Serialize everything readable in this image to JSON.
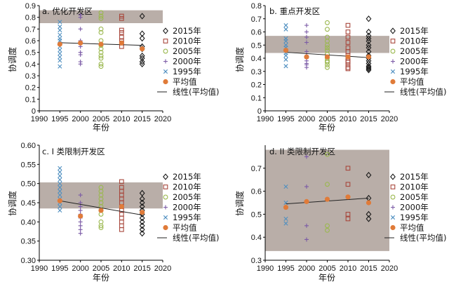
{
  "series_style": {
    "2015": {
      "marker": "diamond",
      "color": "#1a1a1a"
    },
    "2010": {
      "marker": "square",
      "color": "#a8473c"
    },
    "2005": {
      "marker": "circle",
      "color": "#9bb84f"
    },
    "2000": {
      "marker": "plus",
      "color": "#7b5aa6"
    },
    "1995": {
      "marker": "x",
      "color": "#4f8fc0"
    },
    "mean": {
      "marker": "dot",
      "color": "#e07b39"
    },
    "trend": {
      "marker": "line",
      "color": "#222222"
    }
  },
  "band_color": "#b3a7a1",
  "chart_data": [
    {
      "type": "scatter",
      "title": "a. 优化开发区",
      "xlabel": "年份",
      "ylabel": "协调度",
      "xlim": [
        1990,
        2020
      ],
      "ylim": [
        0,
        0.9
      ],
      "xticks": [
        "1990",
        "1995",
        "2000",
        "2005",
        "2010",
        "2015",
        "2020"
      ],
      "yticks": [
        "0",
        "0.1",
        "0.2",
        "0.3",
        "0.4",
        "0.5",
        "0.6",
        "0.7",
        "0.8",
        "0.9"
      ],
      "band": [
        0.75,
        0.86
      ],
      "legend": [
        "2015年",
        "2010年",
        "2005年",
        "2000年",
        "1995年",
        "平均值",
        "线性(平均值)"
      ],
      "series": [
        {
          "name": "2015年",
          "x": 2015,
          "values": [
            0.81,
            0.66,
            0.62,
            0.55,
            0.53,
            0.47,
            0.45,
            0.42,
            0.4
          ]
        },
        {
          "name": "2010年",
          "x": 2010,
          "values": [
            0.81,
            0.79,
            0.69,
            0.67,
            0.63,
            0.6,
            0.58,
            0.55
          ]
        },
        {
          "name": "2005年",
          "x": 2005,
          "values": [
            0.84,
            0.81,
            0.79,
            0.7,
            0.67,
            0.6,
            0.56,
            0.53,
            0.5,
            0.47,
            0.45,
            0.4,
            0.38
          ]
        },
        {
          "name": "2000年",
          "x": 2000,
          "values": [
            0.82,
            0.8,
            0.7,
            0.6,
            0.55,
            0.5,
            0.48,
            0.42,
            0.4
          ]
        },
        {
          "name": "1995年",
          "x": 1995,
          "values": [
            0.76,
            0.72,
            0.69,
            0.65,
            0.62,
            0.6,
            0.55,
            0.52,
            0.49,
            0.46,
            0.43,
            0.38
          ]
        },
        {
          "name": "平均值",
          "x": [
            1995,
            2000,
            2005,
            2010,
            2015
          ],
          "values": [
            0.57,
            0.58,
            0.57,
            0.58,
            0.53
          ]
        }
      ],
      "trend": {
        "name": "线性(平均值)",
        "x": [
          1995,
          2015
        ],
        "y": [
          0.583,
          0.56
        ]
      }
    },
    {
      "type": "scatter",
      "title": "b. 重点开发区",
      "xlabel": "年份",
      "ylabel": "协调度",
      "xlim": [
        1990,
        2020
      ],
      "ylim": [
        0,
        0.8
      ],
      "xticks": [
        "1990",
        "1995",
        "2000",
        "2005",
        "2010",
        "2015",
        "2020"
      ],
      "yticks": [
        "0",
        "0.1",
        "0.2",
        "0.3",
        "0.4",
        "0.5",
        "0.6",
        "0.7",
        "0.8"
      ],
      "band": [
        0.44,
        0.57
      ],
      "legend": [
        "2015年",
        "2010年",
        "2005年",
        "2000年",
        "1995年",
        "平均值",
        "线性(平均值)"
      ],
      "series": [
        {
          "name": "2015年",
          "x": 2015,
          "values": [
            0.7,
            0.6,
            0.57,
            0.55,
            0.53,
            0.5,
            0.48,
            0.45,
            0.42,
            0.4,
            0.38,
            0.36,
            0.34,
            0.33,
            0.32,
            0.31
          ]
        },
        {
          "name": "2010年",
          "x": 2010,
          "values": [
            0.65,
            0.6,
            0.56,
            0.52,
            0.48,
            0.45,
            0.42,
            0.4,
            0.38,
            0.37,
            0.35,
            0.33,
            0.32
          ]
        },
        {
          "name": "2005年",
          "x": 2005,
          "values": [
            0.67,
            0.62,
            0.56,
            0.53,
            0.5,
            0.48,
            0.46,
            0.43,
            0.4,
            0.38,
            0.37,
            0.35,
            0.33
          ]
        },
        {
          "name": "2000年",
          "x": 2000,
          "values": [
            0.65,
            0.6,
            0.56,
            0.52,
            0.45,
            0.42,
            0.4,
            0.38,
            0.36,
            0.35,
            0.33
          ]
        },
        {
          "name": "1995年",
          "x": 1995,
          "values": [
            0.65,
            0.62,
            0.55,
            0.53,
            0.5,
            0.48,
            0.46,
            0.44,
            0.42,
            0.39,
            0.34
          ]
        },
        {
          "name": "平均值",
          "x": [
            1995,
            2000,
            2005,
            2010,
            2015
          ],
          "values": [
            0.46,
            0.41,
            0.41,
            0.41,
            0.41
          ]
        }
      ],
      "trend": {
        "name": "线性(平均值)",
        "x": [
          1995,
          2015
        ],
        "y": [
          0.445,
          0.405
        ]
      }
    },
    {
      "type": "scatter",
      "title": "c. I 类限制开发区",
      "xlabel": "年份",
      "ylabel": "协调度",
      "xlim": [
        1990,
        2020
      ],
      "ylim": [
        0.3,
        0.6
      ],
      "xticks": [
        "1990",
        "1995",
        "2000",
        "2005",
        "2010",
        "2015",
        "2020"
      ],
      "yticks": [
        "0.30",
        "0.35",
        "0.40",
        "0.45",
        "0.50",
        "0.55",
        "0.60"
      ],
      "band": [
        0.435,
        0.503
      ],
      "legend": [
        "2015年",
        "2010年",
        "2005年",
        "2000年",
        "1995年",
        "平均值",
        "线性(平均值)"
      ],
      "series": [
        {
          "name": "2015年",
          "x": 2015,
          "values": [
            0.475,
            0.46,
            0.45,
            0.44,
            0.43,
            0.42,
            0.41,
            0.4,
            0.39,
            0.38,
            0.37
          ]
        },
        {
          "name": "2010年",
          "x": 2010,
          "values": [
            0.505,
            0.49,
            0.48,
            0.47,
            0.46,
            0.45,
            0.44,
            0.43,
            0.42,
            0.41,
            0.4,
            0.39,
            0.38
          ]
        },
        {
          "name": "2005年",
          "x": 2005,
          "values": [
            0.49,
            0.48,
            0.47,
            0.46,
            0.45,
            0.44,
            0.43,
            0.42,
            0.4,
            0.39,
            0.385
          ]
        },
        {
          "name": "2000年",
          "x": 2000,
          "values": [
            0.47,
            0.45,
            0.44,
            0.43,
            0.42,
            0.41,
            0.4,
            0.39,
            0.38,
            0.37
          ]
        },
        {
          "name": "1995年",
          "x": 1995,
          "values": [
            0.54,
            0.53,
            0.52,
            0.51,
            0.5,
            0.49,
            0.48,
            0.47,
            0.46,
            0.45,
            0.44,
            0.43
          ]
        },
        {
          "name": "平均值",
          "x": [
            1995,
            2000,
            2005,
            2010,
            2015
          ],
          "values": [
            0.455,
            0.415,
            0.43,
            0.44,
            0.425
          ]
        }
      ],
      "trend": {
        "name": "线性(平均值)",
        "x": [
          1995,
          2015
        ],
        "y": [
          0.455,
          0.418
        ]
      }
    },
    {
      "type": "scatter",
      "title": "d. II 类限制开发区",
      "xlabel": "年份",
      "ylabel": "协调度",
      "xlim": [
        1990,
        2020
      ],
      "ylim": [
        0.3,
        0.8
      ],
      "xticks": [
        "1990",
        "1995",
        "2000",
        "2005",
        "2010",
        "2015",
        "2020"
      ],
      "yticks": [
        "0.3",
        "0.4",
        "0.5",
        "0.6",
        "0.7"
      ],
      "band": [
        0.34,
        0.78
      ],
      "legend": [
        "2015年",
        "2010年",
        "2005年",
        "2000年",
        "1995年",
        "平均值",
        "线性(平均值)"
      ],
      "series": [
        {
          "name": "2015年",
          "x": 2015,
          "values": [
            0.67,
            0.57,
            0.5,
            0.48
          ]
        },
        {
          "name": "2010年",
          "x": 2010,
          "values": [
            0.7,
            0.63,
            0.5,
            0.48
          ]
        },
        {
          "name": "2005年",
          "x": 2005,
          "values": [
            0.76,
            0.63,
            0.45,
            0.43
          ]
        },
        {
          "name": "2000年",
          "x": 2000,
          "values": [
            0.75,
            0.62,
            0.45,
            0.39
          ]
        },
        {
          "name": "1995年",
          "x": 1995,
          "values": [
            0.62,
            0.55,
            0.48,
            0.46
          ]
        },
        {
          "name": "平均值",
          "x": [
            1995,
            2000,
            2005,
            2010,
            2015
          ],
          "values": [
            0.53,
            0.555,
            0.565,
            0.575,
            0.55
          ]
        }
      ],
      "trend": {
        "name": "线性(平均值)",
        "x": [
          1995,
          2015
        ],
        "y": [
          0.545,
          0.57
        ]
      }
    }
  ]
}
